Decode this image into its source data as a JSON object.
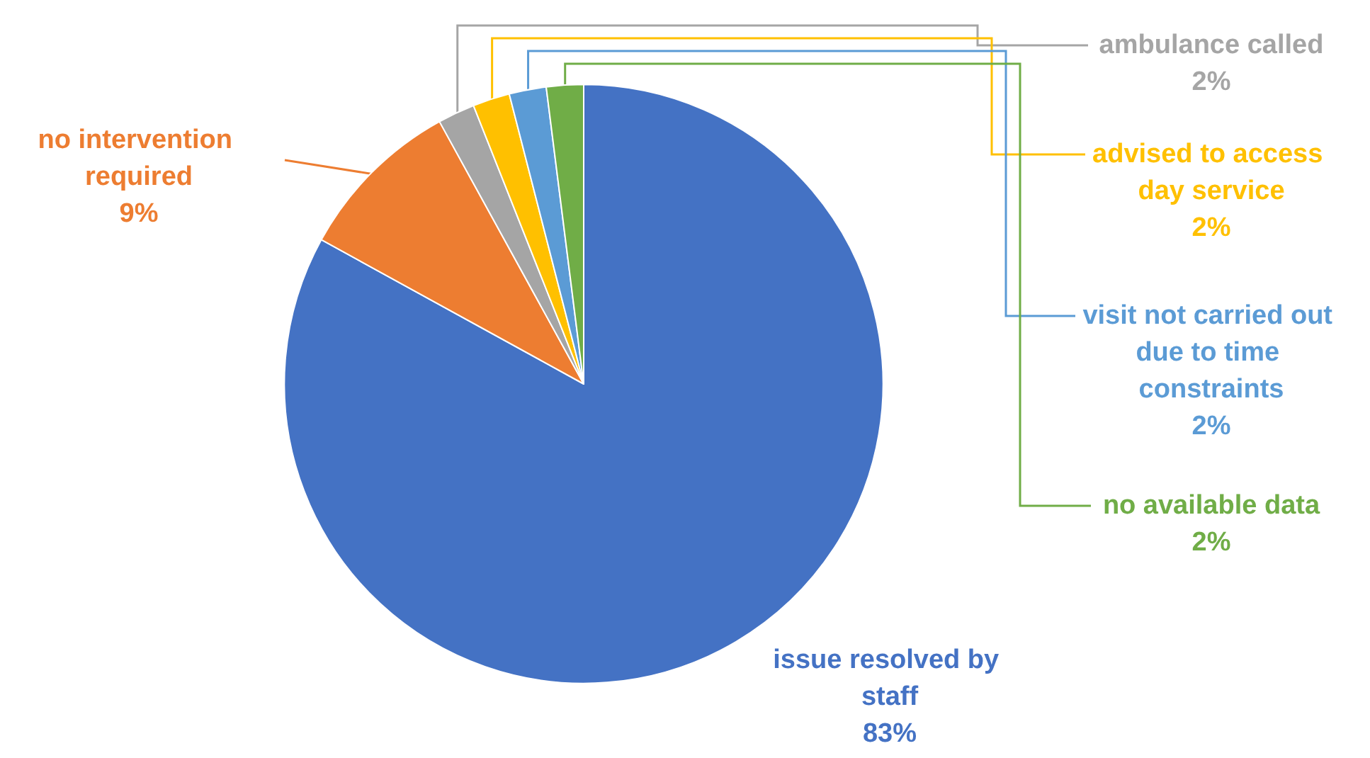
{
  "chart_data": {
    "type": "pie",
    "categories": [
      "issue resolved by staff",
      "no intervention required",
      "ambulance called",
      "advised to access day service",
      "visit not carried out due to time constraints",
      "no available data"
    ],
    "values": [
      83,
      9,
      2,
      2,
      2,
      2
    ],
    "value_labels": [
      "83%",
      "9%",
      "2%",
      "2%",
      "2%",
      "2%"
    ],
    "colors": [
      "#4472c4",
      "#ed7d31",
      "#a5a5a5",
      "#ffc000",
      "#5b9bd5",
      "#70ad47"
    ]
  }
}
